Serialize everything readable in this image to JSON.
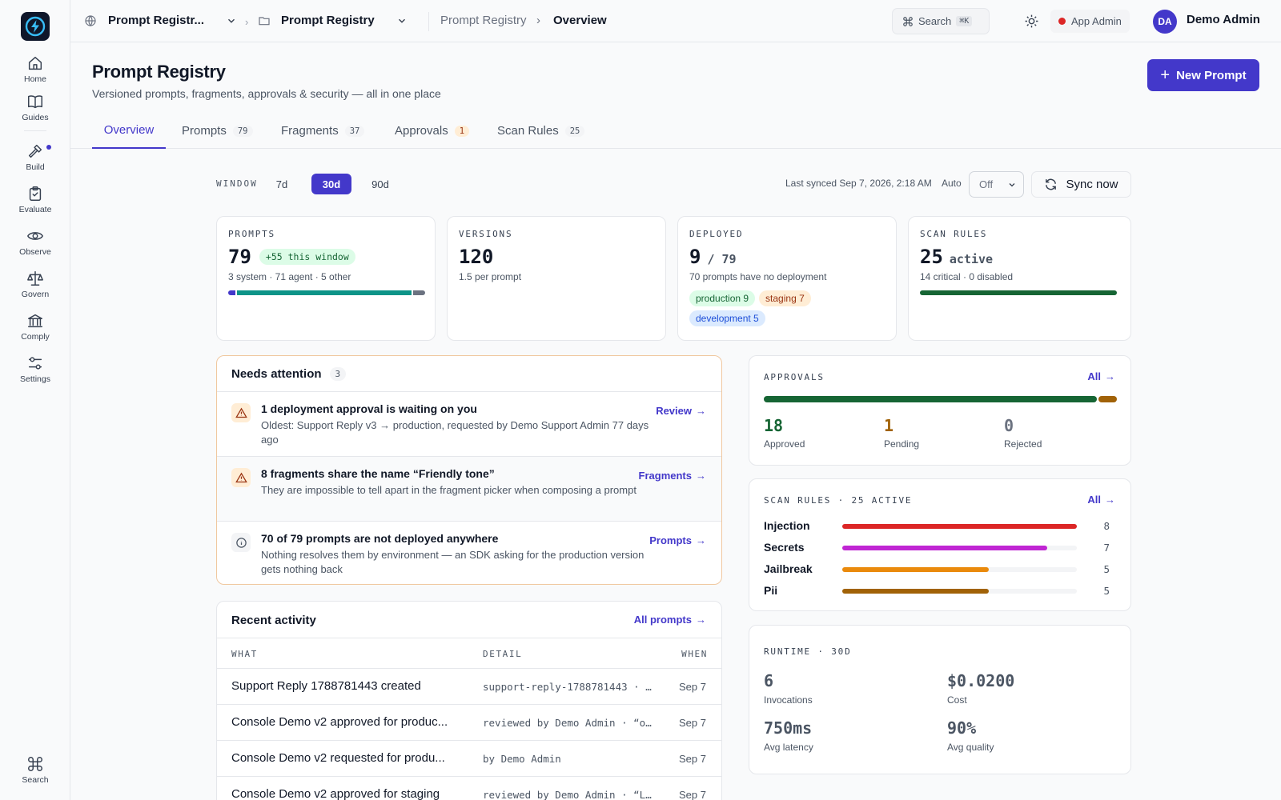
{
  "rail": {
    "items": [
      {
        "label": "Home",
        "icon": "home-icon"
      },
      {
        "label": "Guides",
        "icon": "book-icon"
      },
      {
        "label": "Build",
        "icon": "hammer-icon"
      },
      {
        "label": "Evaluate",
        "icon": "clipboard-check-icon"
      },
      {
        "label": "Observe",
        "icon": "eye-icon"
      },
      {
        "label": "Govern",
        "icon": "scale-icon"
      },
      {
        "label": "Comply",
        "icon": "bank-icon"
      },
      {
        "label": "Settings",
        "icon": "sliders-icon"
      }
    ],
    "search_label": "Search"
  },
  "topbar": {
    "workspace": "Prompt Registr...",
    "project": "Prompt Registry",
    "crumb_parent": "Prompt Registry",
    "crumb_current": "Overview",
    "search_label": "Search",
    "search_shortcut": "⌘K",
    "role": "App Admin",
    "avatar_initials": "DA",
    "user_name": "Demo Admin"
  },
  "page": {
    "title": "Prompt Registry",
    "subtitle": "Versioned prompts, fragments, approvals & security — all in one place",
    "new_button": "New Prompt"
  },
  "tabs": [
    {
      "label": "Overview",
      "count": ""
    },
    {
      "label": "Prompts",
      "count": "79"
    },
    {
      "label": "Fragments",
      "count": "37"
    },
    {
      "label": "Approvals",
      "count": "1"
    },
    {
      "label": "Scan Rules",
      "count": "25"
    }
  ],
  "window": {
    "label": "WINDOW",
    "options": [
      "7d",
      "30d",
      "90d"
    ],
    "selected": "30d",
    "last_synced": "Last synced Sep 7, 2026, 2:18 AM",
    "auto_label": "Auto",
    "auto_value": "Off",
    "sync_button": "Sync now"
  },
  "stats": {
    "prompts": {
      "label": "PROMPTS",
      "value": "79",
      "badge": "+55 this window",
      "breakdown": "3 system · 71 agent · 5 other",
      "system": 3,
      "agent": 71,
      "other": 5
    },
    "versions": {
      "label": "VERSIONS",
      "value": "120",
      "sub": "1.5 per prompt"
    },
    "deployed": {
      "label": "DEPLOYED",
      "value": "9",
      "total": "/ 79",
      "sub": "70 prompts have no deployment",
      "envs": [
        {
          "label": "production 9",
          "color": "#166534",
          "bg": "#dcfce7"
        },
        {
          "label": "staging 7",
          "color": "#9a3412",
          "bg": "#ffedd5"
        },
        {
          "label": "development 5",
          "color": "#1d4ed8",
          "bg": "#dbeafe"
        }
      ]
    },
    "scan_rules": {
      "label": "SCAN RULES",
      "value": "25",
      "suffix": "active",
      "sub": "14 critical · 0 disabled",
      "active_fraction": 1.0
    }
  },
  "attention": {
    "title": "Needs attention",
    "count": "3",
    "items": [
      {
        "icon": "warning-icon",
        "title": "1 deployment approval is waiting on you",
        "desc": "Oldest: Support Reply v3 → production, requested by Demo Support Admin 77 days ago",
        "link": "Review"
      },
      {
        "icon": "warning-icon",
        "title": "8 fragments share the name “Friendly tone”",
        "desc": "They are impossible to tell apart in the fragment picker when composing a prompt",
        "link": "Fragments"
      },
      {
        "icon": "info-icon",
        "title": "70 of 79 prompts are not deployed anywhere",
        "desc": "Nothing resolves them by environment — an SDK asking for the production version gets nothing back",
        "link": "Prompts"
      }
    ]
  },
  "activity": {
    "title": "Recent activity",
    "link": "All prompts",
    "columns": [
      "WHAT",
      "DETAIL",
      "WHEN"
    ],
    "rows": [
      {
        "what": "Support Reply 1788781443 created",
        "detail": "support-reply-1788781443 · …",
        "when": "Sep 7"
      },
      {
        "what": "Console Demo v2 approved for produc...",
        "detail": "reviewed by Demo Admin · “o…",
        "when": "Sep 7"
      },
      {
        "what": "Console Demo v2 requested for produ...",
        "detail": "by Demo Admin",
        "when": "Sep 7"
      },
      {
        "what": "Console Demo v2 approved for staging",
        "detail": "reviewed by Demo Admin · “L…",
        "when": "Sep 7"
      }
    ]
  },
  "approvals": {
    "label": "APPROVALS",
    "link": "All",
    "approved": 18,
    "pending": 1,
    "rejected": 0,
    "approved_label": "Approved",
    "pending_label": "Pending",
    "rejected_label": "Rejected",
    "colors": {
      "approved": "#166534",
      "pending": "#a16207",
      "rejected": "#6b7280"
    }
  },
  "scan": {
    "label": "SCAN RULES · 25 ACTIVE",
    "link": "All",
    "max": 8,
    "rules": [
      {
        "name": "Injection",
        "count": 8,
        "color": "#dc2626"
      },
      {
        "name": "Secrets",
        "count": 7,
        "color": "#c026d3"
      },
      {
        "name": "Jailbreak",
        "count": 5,
        "color": "#ea8a0c"
      },
      {
        "name": "Pii",
        "count": 5,
        "color": "#a16207"
      }
    ]
  },
  "runtime": {
    "label": "RUNTIME · 30D",
    "metrics": [
      {
        "value": "6",
        "label": "Invocations"
      },
      {
        "value": "$0.0200",
        "label": "Cost"
      },
      {
        "value": "750ms",
        "label": "Avg latency"
      },
      {
        "value": "90%",
        "label": "Avg quality"
      }
    ]
  }
}
